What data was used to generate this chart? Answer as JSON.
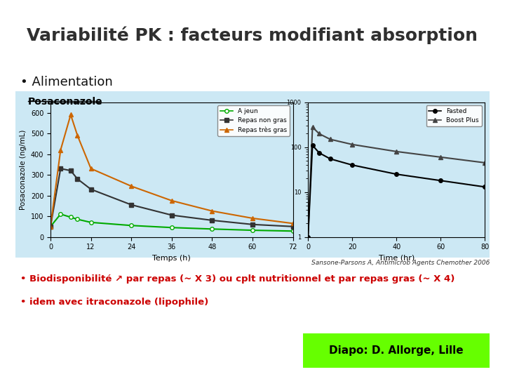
{
  "title": "Variabilité PK : facteurs modifiant absorption",
  "title_fontsize": 18,
  "title_color": "#2f2f2f",
  "bg_color": "#ffffff",
  "panel_bg": "#cce8f4",
  "bullet1": "Alimentation",
  "posaconazole_label": "Posaconazole",
  "citation": "Sansone-Parsons A, Antimicrob Agents Chemother 2006",
  "bullet_text1": "• Biodisponibilité ↗ par repas (~ X 3) ou cplt nutritionnel et par repas gras (~ X 4)",
  "bullet_text2": "• idem avec itraconazole (lipophile)",
  "diapo_text": "Diapo: D. Allorge, Lille",
  "diapo_bg": "#66ff00",
  "left_plot": {
    "times": [
      0,
      3,
      6,
      8,
      12,
      24,
      36,
      48,
      60,
      72
    ],
    "a_jeun": [
      50,
      110,
      95,
      85,
      70,
      55,
      45,
      38,
      32,
      28
    ],
    "repas_non_gras": [
      50,
      330,
      320,
      280,
      230,
      155,
      105,
      80,
      60,
      50
    ],
    "repas_tres_gras": [
      50,
      420,
      590,
      490,
      330,
      245,
      175,
      125,
      90,
      65
    ],
    "ylabel": "Posaconazole (ng/mL)",
    "xlabel": "Temps (h)",
    "ylim": [
      0,
      650
    ],
    "yticks": [
      0,
      100,
      200,
      300,
      400,
      500,
      600
    ],
    "xticks": [
      0,
      12,
      24,
      36,
      48,
      60,
      72
    ],
    "legend_a_jeun": "A jeun",
    "legend_repas_non_gras": "Repas non gras",
    "legend_repas_tres_gras": "Repas très gras",
    "color_a_jeun": "#00aa00",
    "color_repas_non_gras": "#333333",
    "color_repas_tres_gras": "#cc6600"
  },
  "right_plot": {
    "times": [
      0,
      2,
      5,
      10,
      20,
      40,
      60,
      80
    ],
    "fasted": [
      1,
      110,
      75,
      55,
      40,
      25,
      18,
      13
    ],
    "boost_plus": [
      1,
      280,
      200,
      150,
      115,
      80,
      60,
      45
    ],
    "xlabel": "Time (hr)",
    "legend_fasted": "Fasted",
    "legend_boost": "Boost Plus",
    "color_fasted": "#000000",
    "color_boost": "#444444"
  }
}
